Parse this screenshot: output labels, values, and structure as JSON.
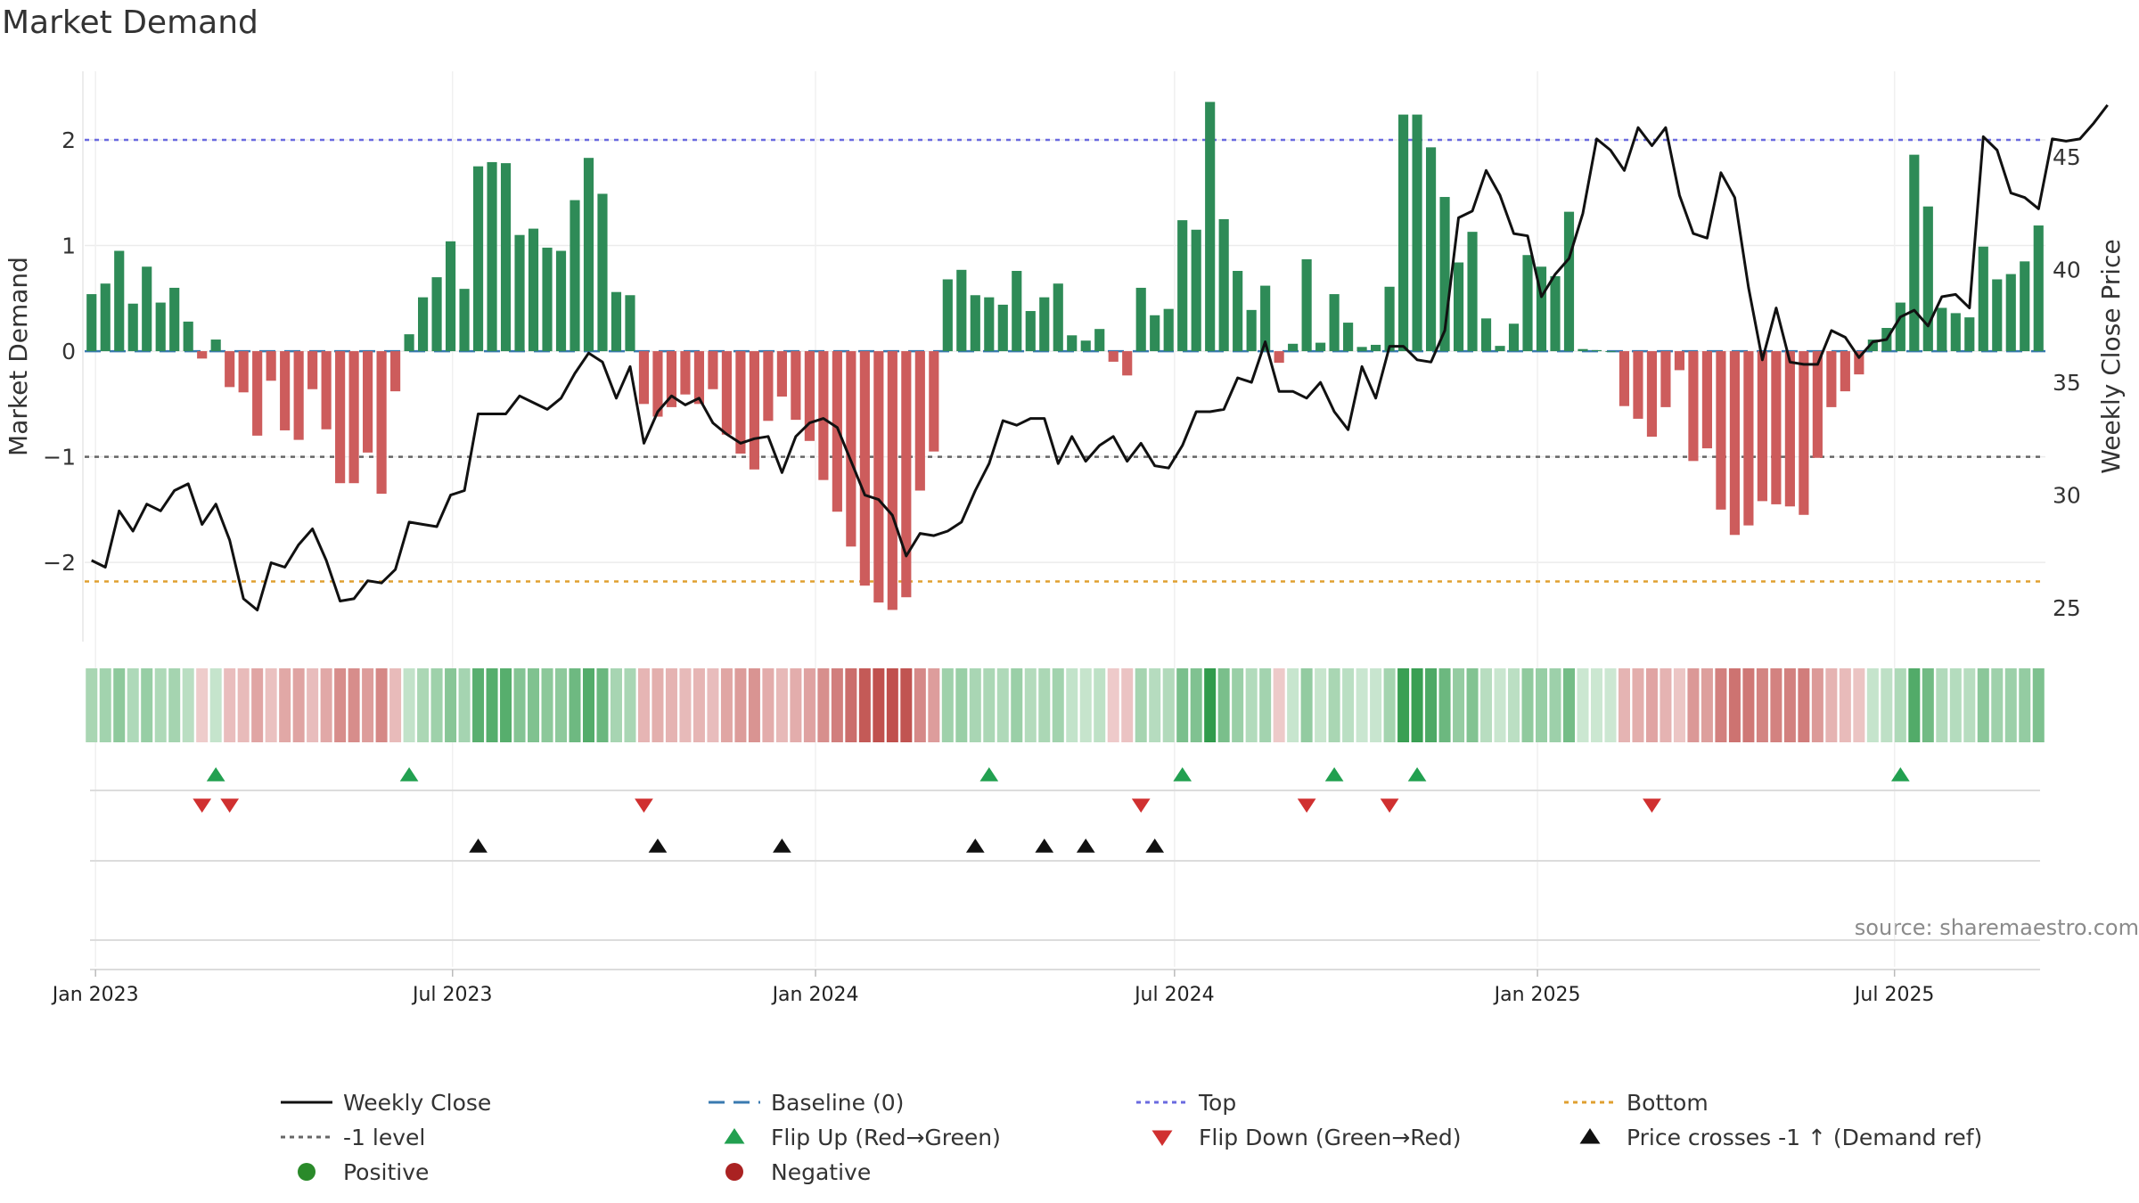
{
  "chart_data": {
    "type": "bar",
    "title": "Market Demand",
    "ylabel": "Market Demand",
    "y2label": "Weekly Close Price",
    "ylim": [
      -2.75,
      2.65
    ],
    "y2lim": [
      23.5,
      48.8
    ],
    "yticks": [
      -2,
      -1,
      0,
      1,
      2
    ],
    "y2ticks": [
      25,
      30,
      35,
      40,
      45
    ],
    "x_start": "2022-12-30",
    "x_end": "2025-09-12",
    "x_step_days": 7,
    "xticks": [
      {
        "label": "Jan 2023",
        "date": "2023-01-01"
      },
      {
        "label": "Jul 2023",
        "date": "2023-07-01"
      },
      {
        "label": "Jan 2024",
        "date": "2024-01-01"
      },
      {
        "label": "Jul 2024",
        "date": "2024-07-01"
      },
      {
        "label": "Jan 2025",
        "date": "2025-01-01"
      },
      {
        "label": "Jul 2025",
        "date": "2025-07-01"
      }
    ],
    "reference_lines": [
      {
        "name": "Top",
        "value": 2.0,
        "color": "#6a6ae0"
      },
      {
        "name": "-1 level",
        "value": -1.0,
        "color": "#666666"
      },
      {
        "name": "Bottom",
        "value": -2.18,
        "color": "#e0a030"
      },
      {
        "name": "Baseline (0)",
        "value": 0.0,
        "color": "#3a7ab0"
      }
    ],
    "series": [
      {
        "name": "Market Demand",
        "values": [
          0.54,
          0.64,
          0.95,
          0.45,
          0.8,
          0.46,
          0.6,
          0.28,
          -0.07,
          0.11,
          -0.34,
          -0.39,
          -0.8,
          -0.28,
          -0.75,
          -0.84,
          -0.36,
          -0.74,
          -1.25,
          -1.25,
          -0.96,
          -1.35,
          -0.38,
          0.16,
          0.51,
          0.7,
          1.04,
          0.59,
          1.75,
          1.79,
          1.78,
          1.1,
          1.16,
          0.98,
          0.95,
          1.43,
          1.83,
          1.49,
          0.56,
          0.53,
          -0.5,
          -0.62,
          -0.53,
          -0.41,
          -0.5,
          -0.36,
          -0.79,
          -0.97,
          -1.12,
          -0.66,
          -0.43,
          -0.65,
          -0.85,
          -1.22,
          -1.52,
          -1.85,
          -2.22,
          -2.38,
          -2.45,
          -2.33,
          -1.32,
          -0.95,
          0.68,
          0.77,
          0.53,
          0.51,
          0.44,
          0.76,
          0.38,
          0.51,
          0.64,
          0.15,
          0.1,
          0.21,
          -0.1,
          -0.23,
          0.6,
          0.34,
          0.4,
          1.24,
          1.15,
          2.36,
          1.25,
          0.76,
          0.39,
          0.62,
          -0.11,
          0.07,
          0.87,
          0.08,
          0.54,
          0.27,
          0.04,
          0.06,
          0.61,
          2.24,
          2.24,
          1.93,
          1.46,
          0.84,
          1.13,
          0.31,
          0.05,
          0.26,
          0.91,
          0.8,
          0.71,
          1.32,
          0.02,
          0.01,
          0.0,
          -0.52,
          -0.64,
          -0.81,
          -0.53,
          -0.18,
          -1.04,
          -0.92,
          -1.5,
          -1.74,
          -1.65,
          -1.42,
          -1.45,
          -1.47,
          -1.55,
          -1.01,
          -0.53,
          -0.38,
          -0.22,
          0.11,
          0.22,
          0.46,
          1.86,
          1.37,
          0.41,
          0.36,
          0.32,
          0.99,
          0.68,
          0.73,
          0.85,
          1.19
        ]
      },
      {
        "name": "Weekly Close",
        "values": [
          27.1,
          26.8,
          29.3,
          28.4,
          29.6,
          29.3,
          30.2,
          30.5,
          28.7,
          29.6,
          28.0,
          25.4,
          24.9,
          27.0,
          26.8,
          27.8,
          28.5,
          27.1,
          25.3,
          25.4,
          26.2,
          26.1,
          26.7,
          28.8,
          28.7,
          28.6,
          30.0,
          30.2,
          33.6,
          33.6,
          33.6,
          34.4,
          34.1,
          33.8,
          34.3,
          35.4,
          36.3,
          35.9,
          34.3,
          35.7,
          32.3,
          33.7,
          34.4,
          34.0,
          34.3,
          33.2,
          32.7,
          32.3,
          32.5,
          32.6,
          31.0,
          32.6,
          33.2,
          33.4,
          33.0,
          31.5,
          30.0,
          29.8,
          29.1,
          27.3,
          28.3,
          28.2,
          28.4,
          28.8,
          30.2,
          31.4,
          33.3,
          33.1,
          33.4,
          33.4,
          31.4,
          32.6,
          31.5,
          32.2,
          32.6,
          31.5,
          32.3,
          31.3,
          31.2,
          32.2,
          33.7,
          33.7,
          33.8,
          35.2,
          35.0,
          36.8,
          34.6,
          34.6,
          34.3,
          35.0,
          33.7,
          32.9,
          35.7,
          34.3,
          36.6,
          36.6,
          36.0,
          35.9,
          37.3,
          42.3,
          42.6,
          44.4,
          43.3,
          41.6,
          41.5,
          38.8,
          39.8,
          40.5,
          42.5,
          45.8,
          45.3,
          44.4,
          46.3,
          45.5,
          46.3,
          43.3,
          41.6,
          41.4,
          44.3,
          43.2,
          39.2,
          36.0,
          38.3,
          35.9,
          35.8,
          35.8,
          37.3,
          37.0,
          36.1,
          36.8,
          36.9,
          37.9,
          38.2,
          37.5,
          38.8,
          38.9,
          38.3,
          45.9,
          45.3,
          43.4,
          43.2,
          42.7,
          45.8,
          45.7,
          45.8,
          46.5,
          47.3
        ]
      }
    ],
    "markers": {
      "flip_up_weeks": [
        9,
        23,
        65,
        79,
        90,
        96,
        131
      ],
      "flip_down_weeks": [
        8,
        10,
        40,
        76,
        88,
        94,
        113
      ],
      "price_cross_weeks": [
        28,
        41,
        50,
        64,
        69,
        72,
        77
      ]
    },
    "legend": {
      "placement": "bottom",
      "entries": [
        {
          "label": "Weekly Close",
          "symbol": "solid-line",
          "color": "#111111"
        },
        {
          "label": "Baseline (0)",
          "symbol": "dashed-line",
          "color": "#3a7ab0"
        },
        {
          "label": "Top",
          "symbol": "dotted-line",
          "color": "#6a6ae0"
        },
        {
          "label": "Bottom",
          "symbol": "dotted-line",
          "color": "#e0a030"
        },
        {
          "label": "-1 level",
          "symbol": "dotted-line",
          "color": "#666666"
        },
        {
          "label": "Flip Up (Red→Green)",
          "symbol": "triangle-up",
          "color": "#22a050"
        },
        {
          "label": "Flip Down (Green→Red)",
          "symbol": "triangle-down",
          "color": "#d03030"
        },
        {
          "label": "Price crosses -1 ↑ (Demand ref)",
          "symbol": "triangle-up",
          "color": "#111111"
        },
        {
          "label": "Positive",
          "symbol": "circle",
          "color": "#2a8a2a"
        },
        {
          "label": "Negative",
          "symbol": "circle",
          "color": "#aa2222"
        }
      ]
    },
    "source_text": "source: sharemaestro.com"
  },
  "colors": {
    "positive_bar": "#2e8b57",
    "negative_bar": "#cd5c5c",
    "price_line": "#111111",
    "flip_up": "#22a050",
    "flip_down": "#d03030",
    "cross": "#111111"
  }
}
